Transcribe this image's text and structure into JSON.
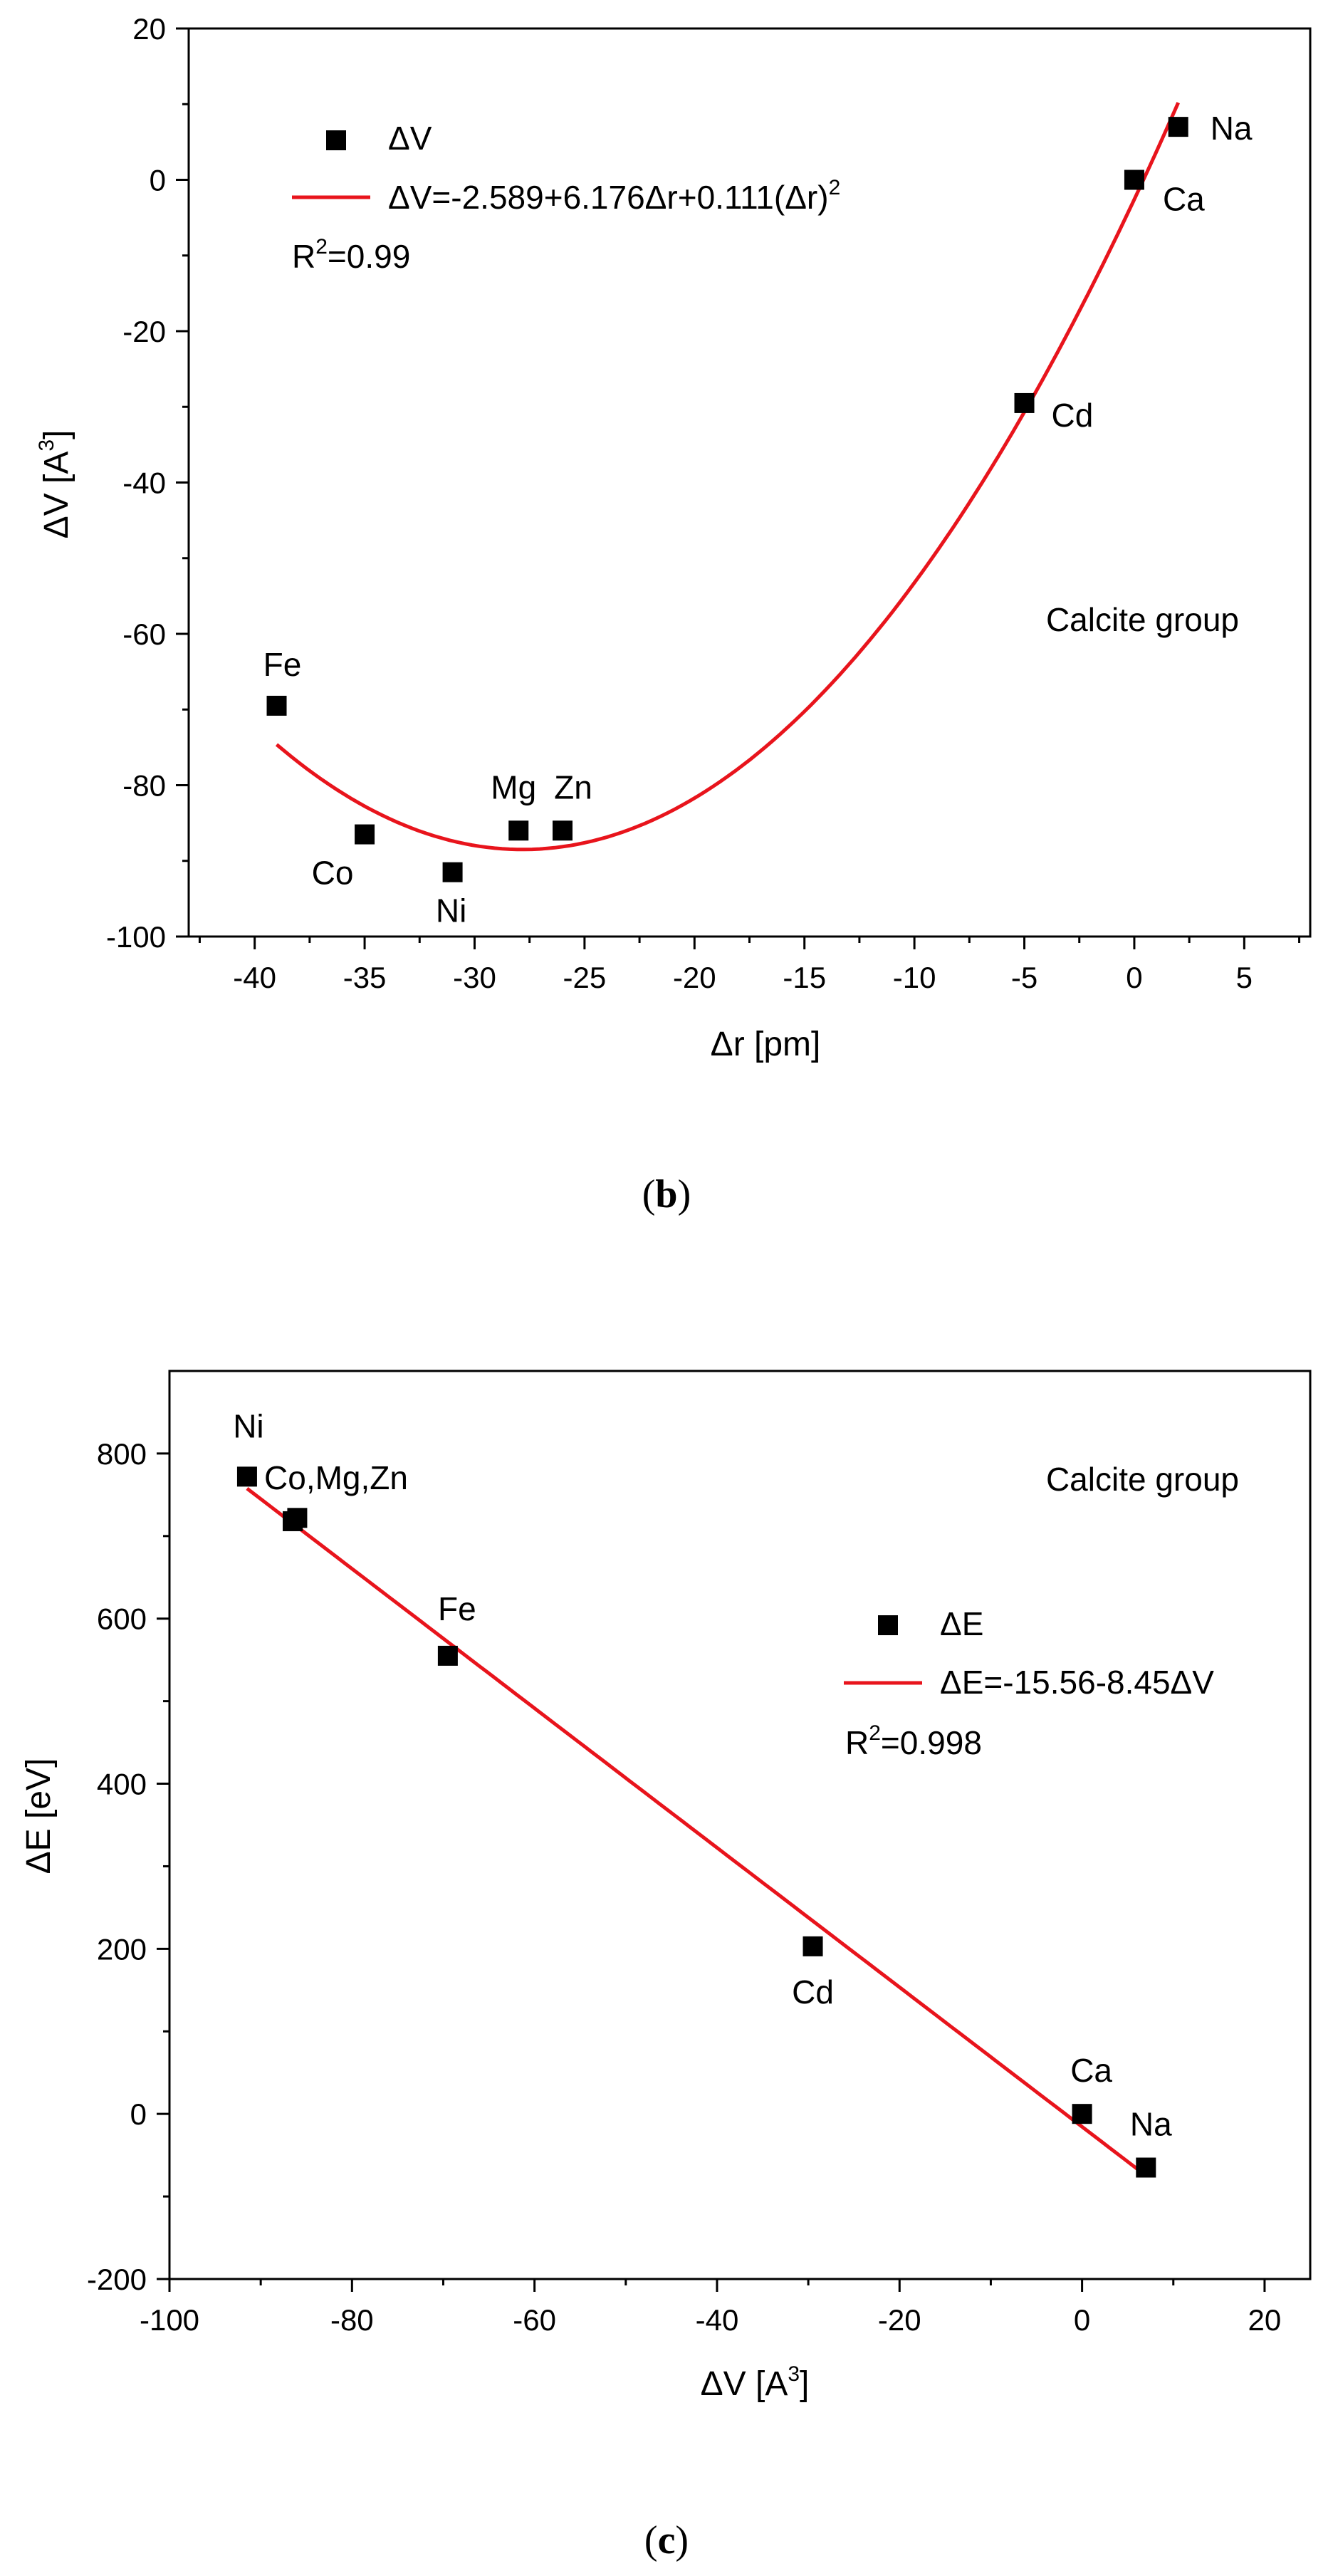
{
  "chart_data": [
    {
      "panel": "b",
      "type": "scatter",
      "xlabel": "Δr [pm]",
      "ylabel_main": "ΔV [A",
      "ylabel_sup": "3",
      "ylabel_end": "]",
      "xlim": [
        -43,
        8
      ],
      "ylim": [
        -100,
        20
      ],
      "xticks": [
        -40,
        -35,
        -30,
        -25,
        -20,
        -15,
        -10,
        -5,
        0,
        5
      ],
      "yticks": [
        -100,
        -80,
        -60,
        -40,
        -20,
        0,
        20
      ],
      "annotation": "Calcite group",
      "legend": {
        "marker_label": "ΔV",
        "line_label_main": "ΔV=-2.589+6.176Δr+0.111(Δr)",
        "line_label_sup": "2",
        "r2_main": "R",
        "r2_sup": "2",
        "r2_value": "=0.99"
      },
      "series": [
        {
          "name": "ΔV",
          "points": [
            {
              "x": -39,
              "y": -69.5,
              "label": "Fe"
            },
            {
              "x": -35,
              "y": -86.5,
              "label": "Co"
            },
            {
              "x": -31,
              "y": -91.5,
              "label": "Ni"
            },
            {
              "x": -28,
              "y": -86,
              "label": "Mg"
            },
            {
              "x": -26,
              "y": -86,
              "label": "Zn"
            },
            {
              "x": -5,
              "y": -29.5,
              "label": "Cd"
            },
            {
              "x": 0,
              "y": 0,
              "label": "Ca"
            },
            {
              "x": 2,
              "y": 7,
              "label": "Na"
            }
          ]
        }
      ],
      "fit": {
        "type": "quadratic",
        "a": -2.589,
        "b": 6.176,
        "c": 0.111,
        "x_from": -39,
        "x_to": 2,
        "color": "#e8141c"
      }
    },
    {
      "panel": "c",
      "type": "scatter",
      "xlabel_main": "ΔV [A",
      "xlabel_sup": "3",
      "xlabel_end": "]",
      "ylabel": "ΔE [eV]",
      "xlim": [
        -100,
        25
      ],
      "ylim": [
        -200,
        900
      ],
      "xticks": [
        -100,
        -80,
        -60,
        -40,
        -20,
        0,
        20
      ],
      "yticks": [
        -200,
        0,
        200,
        400,
        600,
        800
      ],
      "annotation": "Calcite group",
      "legend": {
        "marker_label": "ΔE",
        "line_label": "ΔE=-15.56-8.45ΔV",
        "r2_main": "R",
        "r2_sup": "2",
        "r2_value": "=0.998"
      },
      "series": [
        {
          "name": "ΔE",
          "points": [
            {
              "x": -91.5,
              "y": 772,
              "label": "Ni"
            },
            {
              "x": -86.5,
              "y": 718,
              "label": "Co,Mg,Zn"
            },
            {
              "x": -86,
              "y": 722,
              "label": ""
            },
            {
              "x": -69.5,
              "y": 555,
              "label": "Fe"
            },
            {
              "x": -29.5,
              "y": 203,
              "label": "Cd"
            },
            {
              "x": 0,
              "y": 0,
              "label": "Ca"
            },
            {
              "x": 7,
              "y": -65,
              "label": "Na"
            }
          ]
        }
      ],
      "fit": {
        "type": "linear",
        "a": -15.56,
        "b": -8.45,
        "x_from": -91.5,
        "x_to": 7,
        "color": "#e8141c"
      }
    }
  ],
  "captions": {
    "b_open": "(",
    "b_letter": "b",
    "b_close": ")",
    "c_open": "(",
    "c_letter": "c",
    "c_close": ")"
  }
}
